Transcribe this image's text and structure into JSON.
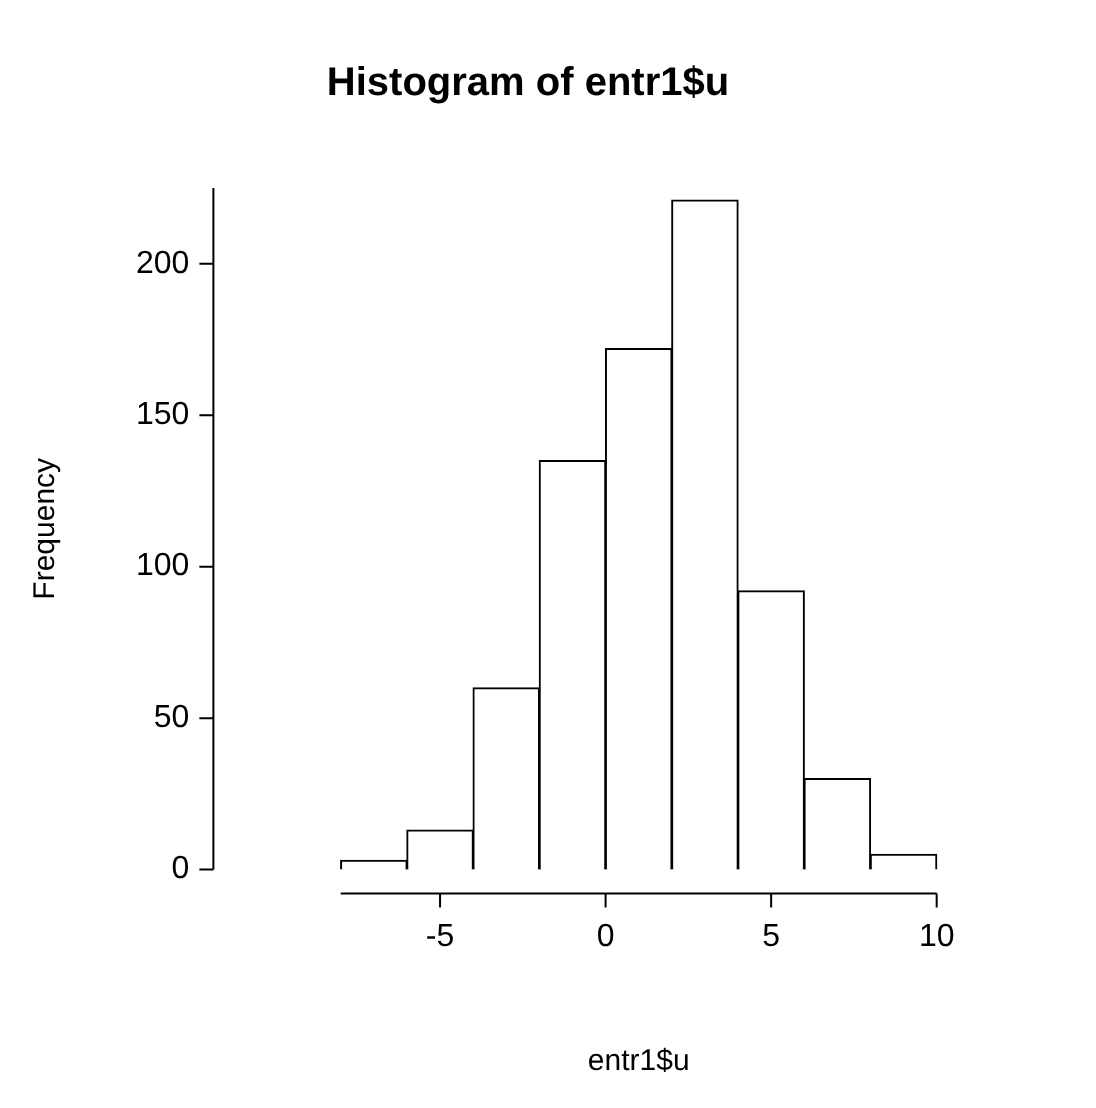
{
  "chart_data": {
    "type": "histogram",
    "title": "Histogram of entr1$u",
    "xlabel": "entr1$u",
    "ylabel": "Frequency",
    "bins": [
      -8,
      -6,
      -4,
      -2,
      0,
      2,
      4,
      6,
      8,
      10
    ],
    "values": [
      3,
      13,
      60,
      135,
      172,
      221,
      92,
      30,
      5
    ],
    "color": "#ffffff",
    "xlim": [
      -8,
      10
    ],
    "xticks": [
      -5,
      0,
      5,
      10
    ],
    "ylim": [
      0,
      225
    ],
    "yticks": [
      0,
      50,
      100,
      150,
      200
    ],
    "grid": false
  }
}
